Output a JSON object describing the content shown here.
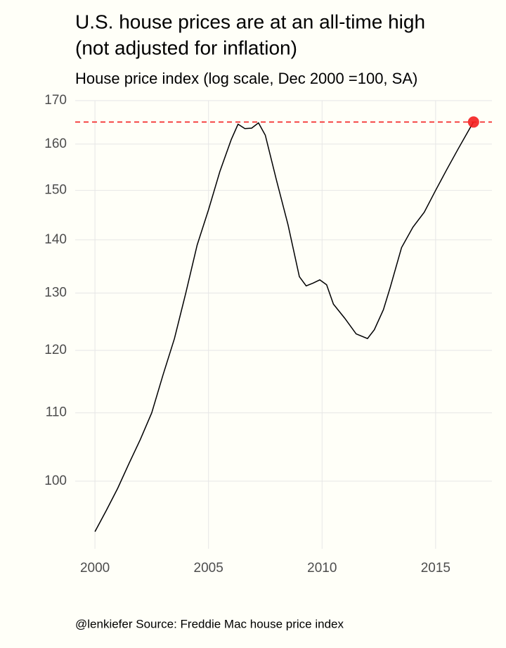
{
  "chart_data": {
    "type": "line",
    "title": [
      "U.S. house prices are at an all-time high",
      "(not adjusted for inflation)"
    ],
    "subtitle": "House price index (log scale, Dec 2000 =100, SA)",
    "caption": "@lenkiefer Source: Freddie Mac house price index",
    "x": [
      2000.0,
      2000.5,
      2001.0,
      2001.5,
      2002.0,
      2002.5,
      2003.0,
      2003.5,
      2004.0,
      2004.5,
      2005.0,
      2005.5,
      2006.0,
      2006.3,
      2006.6,
      2006.9,
      2007.2,
      2007.5,
      2008.0,
      2008.5,
      2009.0,
      2009.3,
      2009.6,
      2009.9,
      2010.2,
      2010.5,
      2011.0,
      2011.5,
      2012.0,
      2012.3,
      2012.7,
      2013.0,
      2013.5,
      2014.0,
      2014.5,
      2015.0,
      2015.5,
      2016.0,
      2016.5,
      2016.67
    ],
    "series": [
      {
        "name": "House price index",
        "color": "#000000",
        "values": [
          93.2,
          96,
          99,
          102.5,
          106,
          110,
          116,
          122,
          130,
          139,
          146,
          154,
          161,
          164.5,
          163.5,
          163.6,
          164.8,
          162,
          152,
          143,
          133,
          131.3,
          131.8,
          132.4,
          131.5,
          128,
          125.5,
          122.8,
          122,
          123.5,
          127,
          131,
          138.5,
          142.5,
          145.5,
          150,
          154.5,
          159,
          163.5,
          165
        ]
      }
    ],
    "highlight_color": "#f41e1e",
    "reference_line": 165,
    "xlim": [
      1999.13,
      2017.48
    ],
    "xticks": [
      2000,
      2005,
      2010,
      2015
    ],
    "ylim": [
      91,
      170
    ],
    "yticks": [
      100,
      110,
      120,
      130,
      140,
      150,
      160,
      170
    ],
    "log_y": true,
    "grid": true
  }
}
